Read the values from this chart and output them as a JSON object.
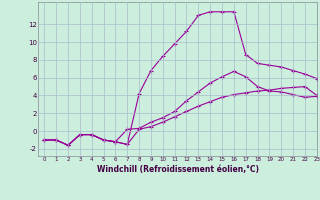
{
  "xlabel": "Windchill (Refroidissement éolien,°C)",
  "bg_color": "#cceedd",
  "line_color": "#990099",
  "grid_color": "#aabbcc",
  "line1_x": [
    0,
    1,
    2,
    3,
    4,
    5,
    6,
    7,
    8,
    9,
    10,
    11,
    12,
    13,
    14,
    15,
    16,
    17,
    18,
    19,
    20,
    21,
    22,
    23
  ],
  "line1_y": [
    -1.0,
    -1.0,
    -1.6,
    -0.4,
    -0.4,
    -1.0,
    -1.2,
    -1.5,
    4.2,
    6.8,
    8.4,
    9.8,
    11.2,
    13.0,
    13.4,
    13.4,
    13.4,
    8.6,
    7.6,
    7.4,
    7.2,
    6.8,
    6.4,
    5.9
  ],
  "line2_x": [
    0,
    1,
    2,
    3,
    4,
    5,
    6,
    7,
    8,
    9,
    10,
    11,
    12,
    13,
    14,
    15,
    16,
    17,
    18,
    19,
    20,
    21,
    22,
    23
  ],
  "line2_y": [
    -1.0,
    -1.0,
    -1.6,
    -0.4,
    -0.4,
    -1.0,
    -1.2,
    -1.5,
    0.2,
    0.5,
    1.0,
    1.6,
    2.2,
    2.8,
    3.3,
    3.8,
    4.1,
    4.3,
    4.5,
    4.6,
    4.8,
    4.9,
    5.0,
    4.0
  ],
  "line3_x": [
    0,
    1,
    2,
    3,
    4,
    5,
    6,
    7,
    8,
    9,
    10,
    11,
    12,
    13,
    14,
    15,
    16,
    17,
    18,
    19,
    20,
    21,
    22,
    23
  ],
  "line3_y": [
    -1.0,
    -1.0,
    -1.6,
    -0.4,
    -0.4,
    -1.0,
    -1.2,
    0.2,
    0.3,
    1.0,
    1.5,
    2.2,
    3.4,
    4.4,
    5.4,
    6.1,
    6.7,
    6.1,
    5.0,
    4.5,
    4.4,
    4.1,
    3.8,
    3.9
  ],
  "xlim": [
    -0.5,
    23
  ],
  "ylim": [
    -2.8,
    14.5
  ],
  "yticks": [
    -2,
    0,
    2,
    4,
    6,
    8,
    10,
    12
  ],
  "xticks": [
    0,
    1,
    2,
    3,
    4,
    5,
    6,
    7,
    8,
    9,
    10,
    11,
    12,
    13,
    14,
    15,
    16,
    17,
    18,
    19,
    20,
    21,
    22,
    23
  ]
}
